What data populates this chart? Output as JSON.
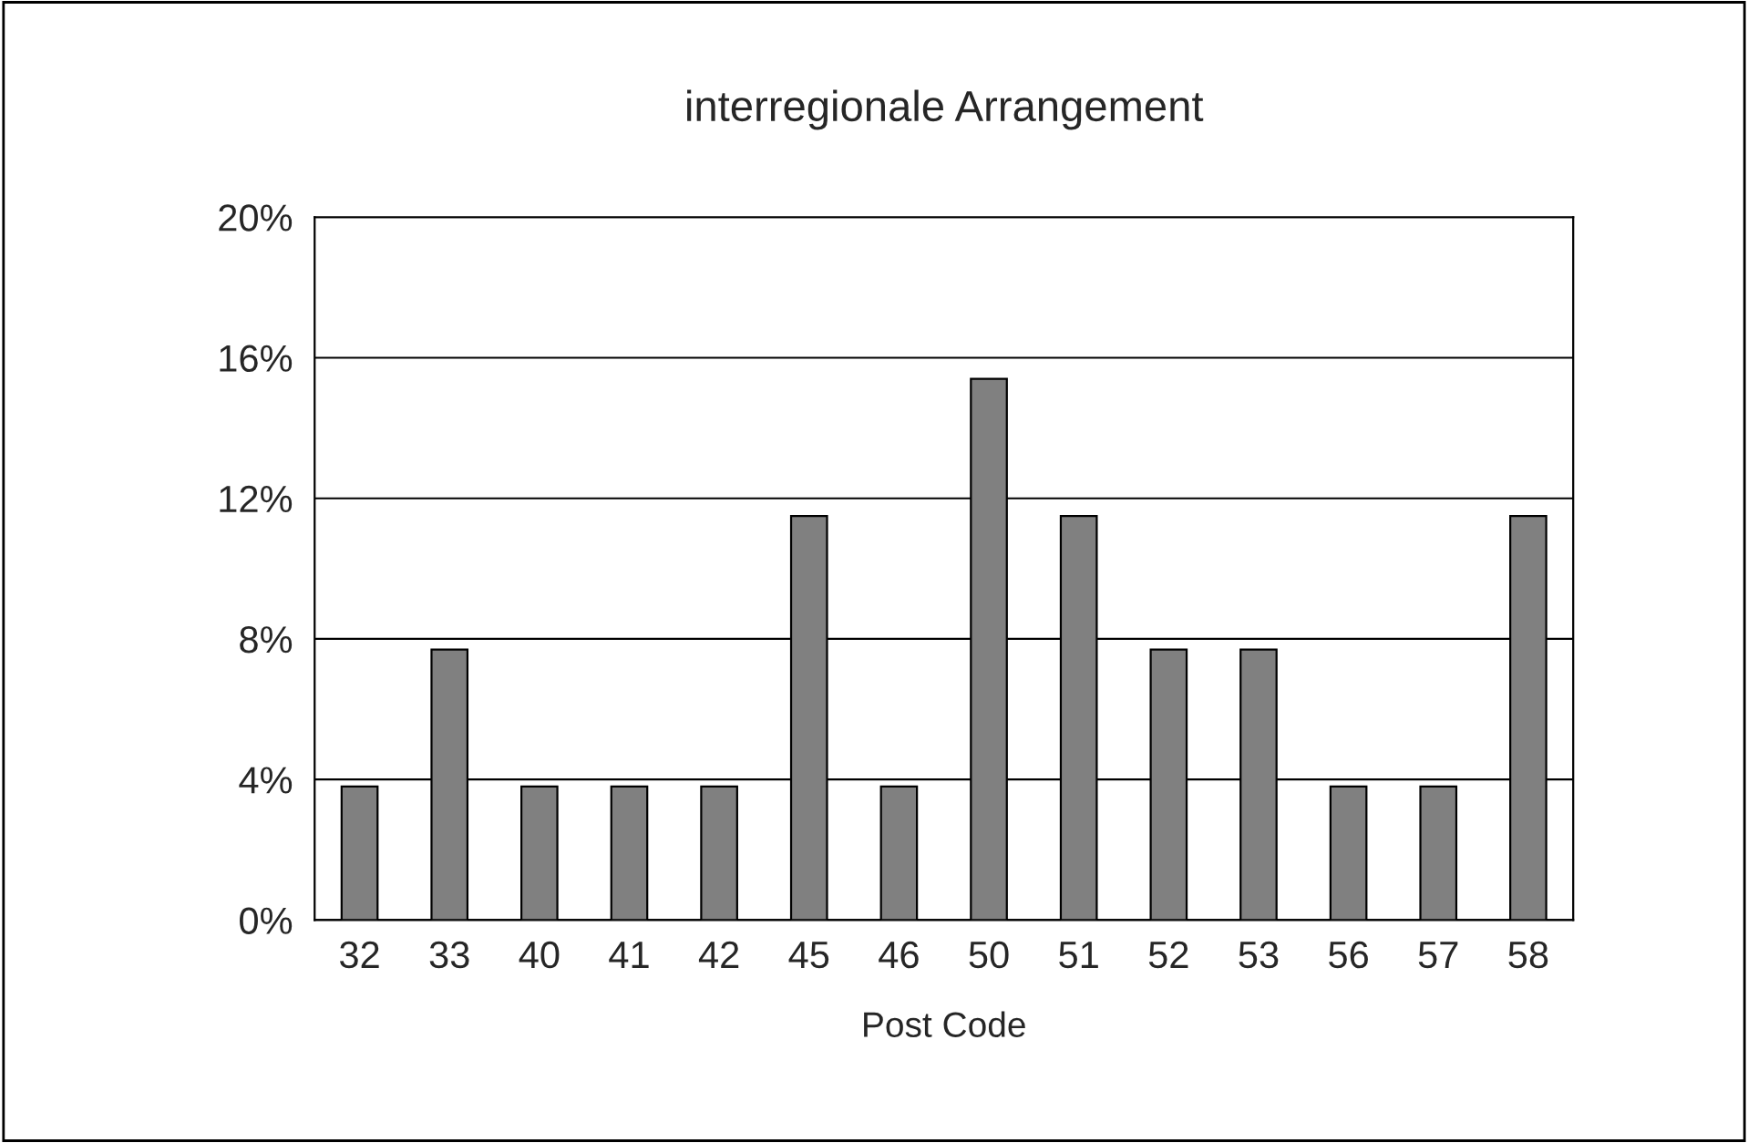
{
  "chart_data": {
    "type": "bar",
    "title": "interregionale Arrangement",
    "xlabel": "Post Code",
    "categories": [
      "32",
      "33",
      "40",
      "41",
      "42",
      "45",
      "46",
      "50",
      "51",
      "52",
      "53",
      "56",
      "57",
      "58"
    ],
    "values": [
      3.8,
      7.7,
      3.8,
      3.8,
      3.8,
      11.5,
      3.8,
      15.4,
      11.5,
      7.7,
      7.7,
      3.8,
      3.8,
      11.5
    ],
    "color": "#808080",
    "ylim": [
      0,
      20
    ],
    "yticks": [
      {
        "value": 0,
        "label": "0%"
      },
      {
        "value": 4,
        "label": "4%"
      },
      {
        "value": 8,
        "label": "8%"
      },
      {
        "value": 12,
        "label": "12%"
      },
      {
        "value": 16,
        "label": "16%"
      },
      {
        "value": 20,
        "label": "20%"
      }
    ],
    "grid": "y"
  }
}
